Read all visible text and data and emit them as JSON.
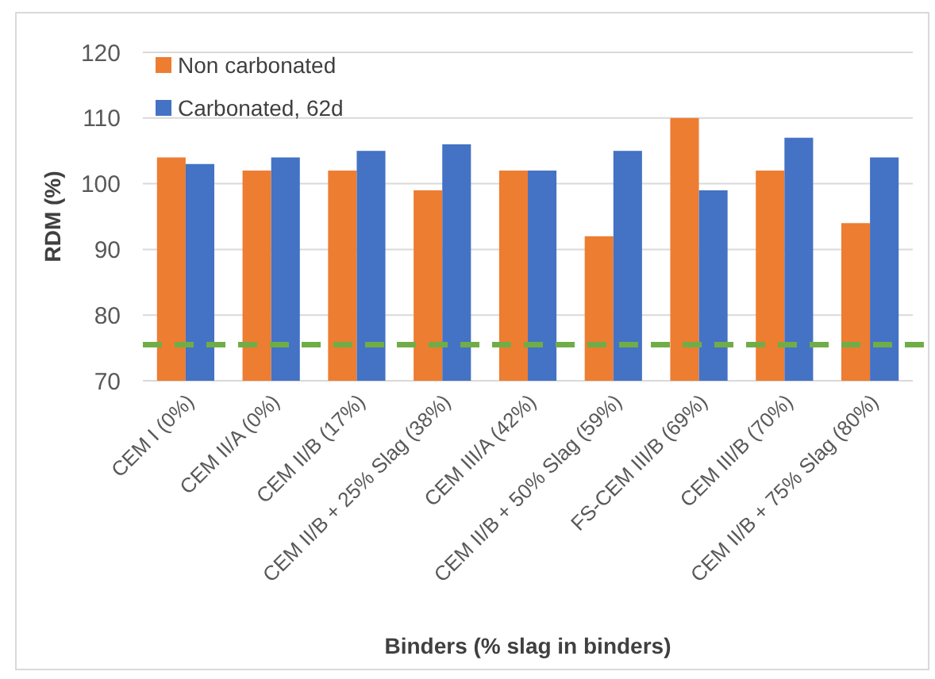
{
  "chart_data": {
    "type": "bar",
    "xlabel": "Binders (% slag in binders)",
    "ylabel": "RDM (%)",
    "categories": [
      "CEM I  (0%)",
      "CEM II/A  (0%)",
      "CEM II/B  (17%)",
      "CEM II/B + 25% Slag  (38%)",
      "CEM III/A (42%)",
      "CEM II/B + 50% Slag  (59%)",
      "FS-CEM III/B (69%)",
      "CEM III/B (70%)",
      "CEM II/B + 75% Slag  (80%)"
    ],
    "series": [
      {
        "name": "Non carbonated",
        "color": "#ed7d31",
        "values": [
          104,
          102,
          102,
          99,
          102,
          92,
          110,
          102,
          94
        ]
      },
      {
        "name": "Carbonated, 62d",
        "color": "#4472c4",
        "values": [
          103,
          104,
          105,
          106,
          102,
          105,
          99,
          107,
          104
        ]
      }
    ],
    "ylim": [
      70,
      120
    ],
    "yticks": [
      70,
      80,
      90,
      100,
      110,
      120
    ],
    "grid": "y",
    "legend": "top left",
    "ref_lines": [
      {
        "axis": "y",
        "value": 75.5,
        "color": "#70ad47",
        "line_style": "dashed"
      }
    ]
  }
}
